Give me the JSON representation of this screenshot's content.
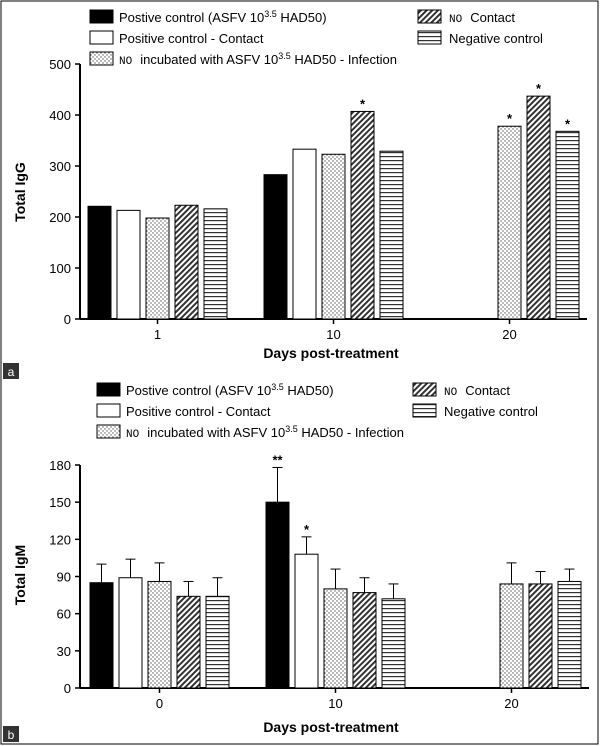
{
  "chart_data": [
    {
      "panel_label": "a",
      "type": "bar",
      "categories": [
        "1",
        "10",
        "20"
      ],
      "series": [
        {
          "name": "Postive control (ASFV 10",
          "values": [
            221,
            283,
            null
          ],
          "fill": "solid",
          "errors": [
            null,
            null,
            null
          ],
          "stars": [
            "",
            "",
            ""
          ]
        },
        {
          "name": "Positive control - Contact",
          "values": [
            213,
            333,
            null
          ],
          "fill": "white",
          "errors": [
            null,
            null,
            null
          ],
          "stars": [
            "",
            "",
            ""
          ]
        },
        {
          "name": "incubated with ASFV 10",
          "values": [
            198,
            323,
            378
          ],
          "fill": "dots",
          "errors": [
            null,
            null,
            null
          ],
          "stars": [
            "",
            "",
            "*"
          ]
        },
        {
          "name": "Contact",
          "values": [
            223,
            407,
            437
          ],
          "fill": "diagonal",
          "errors": [
            null,
            null,
            null
          ],
          "stars": [
            "",
            "*",
            "*"
          ]
        },
        {
          "name": "Negative control",
          "values": [
            216,
            329,
            368
          ],
          "fill": "horizontal",
          "errors": [
            null,
            null,
            null
          ],
          "stars": [
            "",
            "",
            "*"
          ]
        }
      ],
      "legend_extra": {
        "sup": "3.5",
        "suffix_1": " HAD50)",
        "suffix_3": " HAD50 - Infection",
        "prefix_no": "NO"
      },
      "xlabel": "Days post-treatment",
      "ylabel": "Total IgG",
      "ylim": [
        0,
        500
      ],
      "yticks": [
        "0",
        "100",
        "200",
        "300",
        "400",
        "500"
      ]
    },
    {
      "panel_label": "b",
      "type": "bar",
      "categories": [
        "0",
        "10",
        "20"
      ],
      "series": [
        {
          "name": "Postive control (ASFV 10",
          "values": [
            85,
            150,
            null
          ],
          "fill": "solid",
          "errors": [
            15,
            28,
            null
          ],
          "stars": [
            "",
            "**",
            ""
          ]
        },
        {
          "name": "Positive control - Contact",
          "values": [
            89,
            108,
            null
          ],
          "fill": "white",
          "errors": [
            15,
            14,
            null
          ],
          "stars": [
            "",
            "*",
            ""
          ]
        },
        {
          "name": "incubated with ASFV 10",
          "values": [
            86,
            80,
            84
          ],
          "fill": "dots",
          "errors": [
            15,
            16,
            17
          ],
          "stars": [
            "",
            "",
            ""
          ]
        },
        {
          "name": "Contact",
          "values": [
            74,
            77,
            84
          ],
          "fill": "diagonal",
          "errors": [
            12,
            12,
            10
          ],
          "stars": [
            "",
            "",
            ""
          ]
        },
        {
          "name": "Negative control",
          "values": [
            74,
            72,
            86
          ],
          "fill": "horizontal",
          "errors": [
            15,
            12,
            10
          ],
          "stars": [
            "",
            "",
            ""
          ]
        }
      ],
      "legend_extra": {
        "sup": "3.5",
        "suffix_1": " HAD50)",
        "suffix_3": " HAD50 - Infection",
        "prefix_no": "NO"
      },
      "xlabel": "Days post-treatment",
      "ylabel": "Total IgM",
      "ylim": [
        0,
        180
      ],
      "yticks": [
        "0",
        "30",
        "60",
        "90",
        "120",
        "150",
        "180"
      ]
    }
  ]
}
